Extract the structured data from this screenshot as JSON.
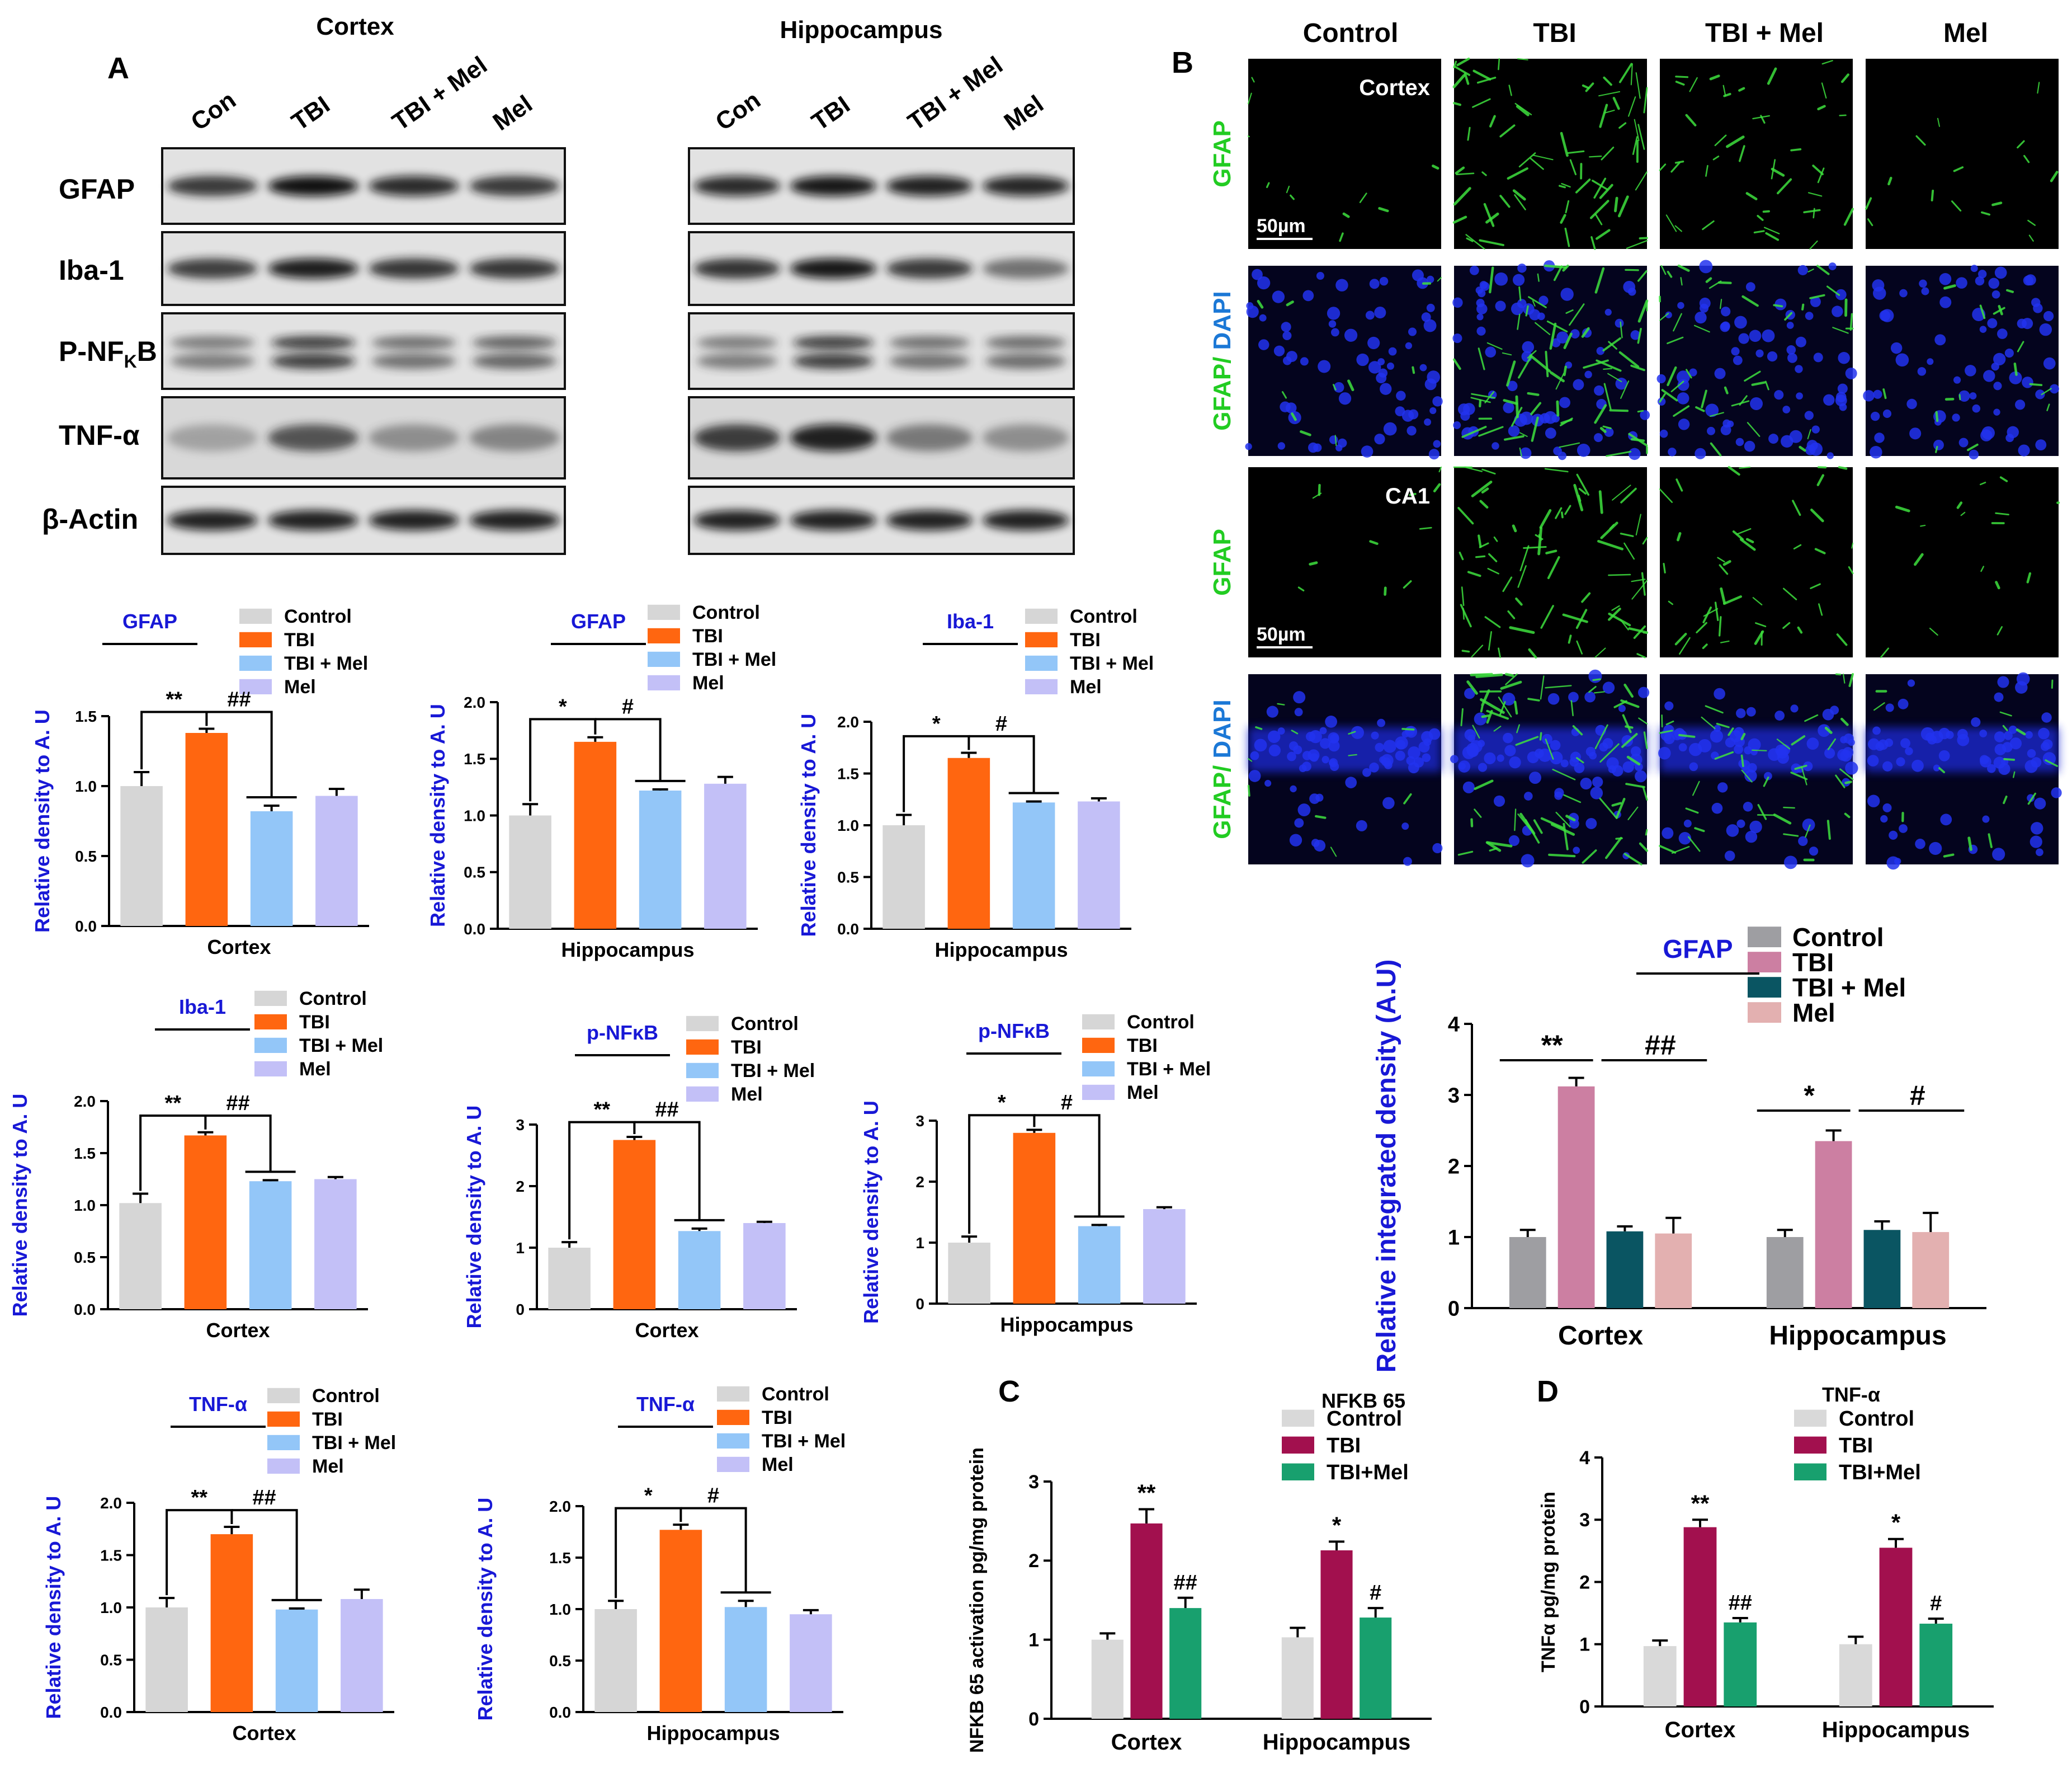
{
  "colors": {
    "control": "#d6d6d6",
    "tbi": "#ff6610",
    "tbimel": "#93c6f8",
    "mel": "#c3c0f7",
    "ylabel_blue": "#1818d6",
    "gfap_green": "#22cc22",
    "dapi_blue": "#1b78d6",
    "if_control": "#9e9ea2",
    "if_tbi": "#cc7fa2",
    "if_tbimel": "#0a5562",
    "if_mel": "#e3b0b0",
    "cd_control": "#d9d9d9",
    "cd_tbi": "#a2104e",
    "cd_tbimel": "#18a06e"
  },
  "panel_a": {
    "letter": "A",
    "regions": [
      {
        "title": "Cortex",
        "lanes": [
          "Con",
          "TBI",
          "TBI + Mel",
          "Mel"
        ]
      },
      {
        "title": "Hippocampus",
        "lanes": [
          "Con",
          "TBI",
          "TBI + Mel",
          "Mel"
        ]
      }
    ],
    "proteins": [
      "GFAP",
      "Iba-1",
      "P-NF",
      "TNF-α",
      "β-Actin"
    ],
    "protein_sub": "K",
    "protein_suffix": "B"
  },
  "panel_b": {
    "letter": "B",
    "columns": [
      "Control",
      "TBI",
      "TBI + Mel",
      "Mel"
    ],
    "rows": [
      {
        "label_a": "GFAP",
        "label_b": "",
        "tag": "Cortex",
        "scale": "50µm",
        "type": "gfap",
        "layer": false
      },
      {
        "label_a": "GFAP/",
        "label_b": " DAPI",
        "tag": "",
        "scale": "",
        "type": "merge",
        "layer": false
      },
      {
        "label_a": "GFAP",
        "label_b": "",
        "tag": "CA1",
        "scale": "50µm",
        "type": "gfap",
        "layer": false
      },
      {
        "label_a": "GFAP/",
        "label_b": " DAPI",
        "tag": "",
        "scale": "",
        "type": "merge",
        "layer": true
      }
    ]
  },
  "panel_c": {
    "letter": "C"
  },
  "panel_d": {
    "letter": "D"
  },
  "chart_data": [
    {
      "id": "wb-cortex-gfap",
      "type": "bar",
      "title": "GFAP",
      "xlabel": "Cortex",
      "ylabel": "Relative density to A. U",
      "ylim": [
        0,
        1.5
      ],
      "yticks": [
        0.0,
        0.5,
        1.0,
        1.5
      ],
      "categories": [
        "Control",
        "TBI",
        "TBI + Mel",
        "Mel"
      ],
      "values": [
        1.0,
        1.38,
        0.82,
        0.93
      ],
      "errors": [
        0.1,
        0.03,
        0.04,
        0.05
      ],
      "legend": [
        "Control",
        "TBI",
        "TBI + Mel",
        "Mel"
      ],
      "sig": [
        "**",
        "##"
      ]
    },
    {
      "id": "wb-hippo-gfap",
      "type": "bar",
      "title": "GFAP",
      "xlabel": "Hippocampus",
      "ylabel": "Relative density to A. U",
      "ylim": [
        0,
        2.0
      ],
      "yticks": [
        0.0,
        0.5,
        1.0,
        1.5,
        2.0
      ],
      "categories": [
        "Control",
        "TBI",
        "TBI + Mel",
        "Mel"
      ],
      "values": [
        1.0,
        1.65,
        1.22,
        1.28
      ],
      "errors": [
        0.1,
        0.04,
        0.01,
        0.06
      ],
      "legend": [
        "Control",
        "TBI",
        "TBI + Mel",
        "Mel"
      ],
      "sig": [
        "*",
        "#"
      ]
    },
    {
      "id": "wb-hippo-iba1",
      "type": "bar",
      "title": "Iba-1",
      "xlabel": "Hippocampus",
      "ylabel": "Relative density to A. U",
      "ylim": [
        0,
        2.0
      ],
      "yticks": [
        0.0,
        0.5,
        1.0,
        1.5,
        2.0
      ],
      "categories": [
        "Control",
        "TBI",
        "TBI + Mel",
        "Mel"
      ],
      "values": [
        1.0,
        1.65,
        1.22,
        1.23
      ],
      "errors": [
        0.1,
        0.05,
        0.01,
        0.03
      ],
      "legend": [
        "Control",
        "TBI",
        "TBI + Mel",
        "Mel"
      ],
      "sig": [
        "*",
        "#"
      ]
    },
    {
      "id": "wb-cortex-iba1",
      "type": "bar",
      "title": "Iba-1",
      "xlabel": "Cortex",
      "ylabel": "Relative density to A. U",
      "ylim": [
        0,
        2.0
      ],
      "yticks": [
        0.0,
        0.5,
        1.0,
        1.5,
        2.0
      ],
      "categories": [
        "Control",
        "TBI",
        "TBI + Mel",
        "Mel"
      ],
      "values": [
        1.02,
        1.67,
        1.23,
        1.25
      ],
      "errors": [
        0.09,
        0.03,
        0.01,
        0.02
      ],
      "legend": [
        "Control",
        "TBI",
        "TBI + Mel",
        "Mel"
      ],
      "sig": [
        "**",
        "##"
      ]
    },
    {
      "id": "wb-cortex-pnfkb",
      "type": "bar",
      "title": "p-NFκB",
      "xlabel": "Cortex",
      "ylabel": "Relative density to A. U",
      "ylim": [
        0,
        3
      ],
      "yticks": [
        0,
        1,
        2,
        3
      ],
      "categories": [
        "Control",
        "TBI",
        "TBI + Mel",
        "Mel"
      ],
      "values": [
        1.0,
        2.75,
        1.27,
        1.4
      ],
      "errors": [
        0.09,
        0.05,
        0.04,
        0.02
      ],
      "legend": [
        "Control",
        "TBI",
        "TBI + Mel",
        "Mel"
      ],
      "sig": [
        "**",
        "##"
      ]
    },
    {
      "id": "wb-hippo-pnfkb",
      "type": "bar",
      "title": "p-NFκB",
      "xlabel": "Hippocampus",
      "ylabel": "Relative density to A. U",
      "ylim": [
        0,
        3
      ],
      "yticks": [
        0,
        1,
        2,
        3
      ],
      "categories": [
        "Control",
        "TBI",
        "TBI + Mel",
        "Mel"
      ],
      "values": [
        1.0,
        2.8,
        1.27,
        1.55
      ],
      "errors": [
        0.1,
        0.05,
        0.02,
        0.03
      ],
      "legend": [
        "Control",
        "TBI",
        "TBI + Mel",
        "Mel"
      ],
      "sig": [
        "*",
        "#"
      ]
    },
    {
      "id": "wb-cortex-tnfa",
      "type": "bar",
      "title": "TNF-α",
      "xlabel": "Cortex",
      "ylabel": "Relative density to A. U",
      "ylim": [
        0,
        2.0
      ],
      "yticks": [
        0.0,
        0.5,
        1.0,
        1.5,
        2.0
      ],
      "categories": [
        "Control",
        "TBI",
        "TBI + Mel",
        "Mel"
      ],
      "values": [
        1.0,
        1.7,
        0.98,
        1.08
      ],
      "errors": [
        0.09,
        0.07,
        0.01,
        0.09
      ],
      "legend": [
        "Control",
        "TBI",
        "TBI + Mel",
        "Mel"
      ],
      "sig": [
        "**",
        "##"
      ]
    },
    {
      "id": "wb-hippo-tnfa",
      "type": "bar",
      "title": "TNF-α",
      "xlabel": "Hippocampus",
      "ylabel": "Relative density to A. U",
      "ylim": [
        0,
        2.0
      ],
      "yticks": [
        0.0,
        0.5,
        1.0,
        1.5,
        2.0
      ],
      "categories": [
        "Control",
        "TBI",
        "TBI + Mel",
        "Mel"
      ],
      "values": [
        1.0,
        1.77,
        1.02,
        0.95
      ],
      "errors": [
        0.08,
        0.05,
        0.06,
        0.04
      ],
      "legend": [
        "Control",
        "TBI",
        "TBI + Mel",
        "Mel"
      ],
      "sig": [
        "*",
        "#"
      ]
    },
    {
      "id": "if-gfap",
      "type": "bar",
      "title": "GFAP",
      "ylabel": "Relative integrated density (A.U)",
      "ylim": [
        0,
        4
      ],
      "yticks": [
        0,
        1,
        2,
        3,
        4
      ],
      "categories": [
        "Cortex",
        "Hippocampus"
      ],
      "series": [
        {
          "name": "Control",
          "values": [
            1.0,
            1.0
          ],
          "errors": [
            0.1,
            0.1
          ]
        },
        {
          "name": "TBI",
          "values": [
            3.12,
            2.35
          ],
          "errors": [
            0.12,
            0.15
          ]
        },
        {
          "name": "TBI + Mel",
          "values": [
            1.08,
            1.1
          ],
          "errors": [
            0.07,
            0.12
          ]
        },
        {
          "name": "Mel",
          "values": [
            1.05,
            1.07
          ],
          "errors": [
            0.22,
            0.27
          ]
        }
      ],
      "sig": [
        "**",
        "##",
        "*",
        "#"
      ]
    },
    {
      "id": "nfkb-activation",
      "type": "bar",
      "title": "NFKB 65",
      "ylabel": "NFKB 65 activation pg/mg protein",
      "ylim": [
        0,
        3
      ],
      "yticks": [
        0,
        1,
        2,
        3
      ],
      "categories": [
        "Cortex",
        "Hippocampus"
      ],
      "series": [
        {
          "name": "Control",
          "values": [
            1.0,
            1.03
          ],
          "errors": [
            0.08,
            0.12
          ]
        },
        {
          "name": "TBI",
          "values": [
            2.47,
            2.13
          ],
          "errors": [
            0.18,
            0.11
          ]
        },
        {
          "name": "TBI+Mel",
          "values": [
            1.4,
            1.28
          ],
          "errors": [
            0.13,
            0.12
          ]
        }
      ],
      "sig": [
        "**",
        "##",
        "*",
        "#"
      ]
    },
    {
      "id": "tnfa-level",
      "type": "bar",
      "title": "TNF-α",
      "ylabel": "TNFα pg/mg protein",
      "ylim": [
        0,
        4
      ],
      "yticks": [
        0,
        1,
        2,
        3,
        4
      ],
      "categories": [
        "Cortex",
        "Hippocampus"
      ],
      "series": [
        {
          "name": "Control",
          "values": [
            0.97,
            1.0
          ],
          "errors": [
            0.09,
            0.12
          ]
        },
        {
          "name": "TBI",
          "values": [
            2.88,
            2.55
          ],
          "errors": [
            0.12,
            0.14
          ]
        },
        {
          "name": "TBI+Mel",
          "values": [
            1.35,
            1.33
          ],
          "errors": [
            0.07,
            0.08
          ]
        }
      ],
      "sig": [
        "**",
        "##",
        "*",
        "#"
      ]
    }
  ]
}
